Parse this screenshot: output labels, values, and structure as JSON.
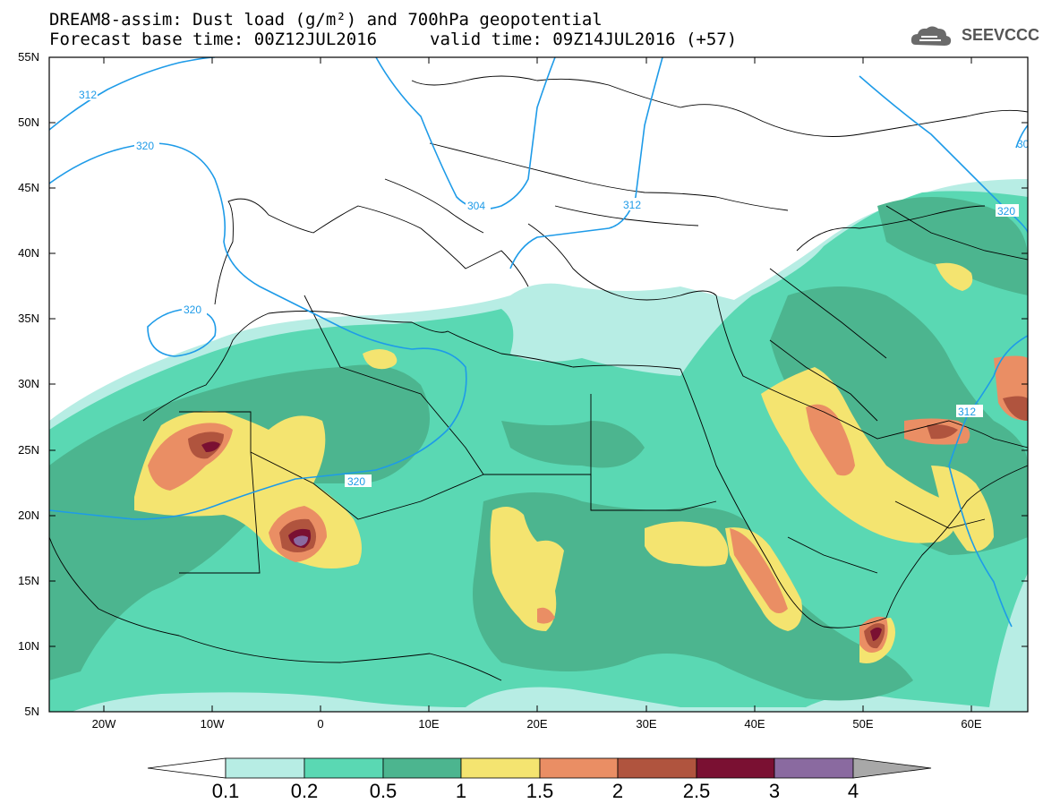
{
  "header": {
    "title_line1": "DREAM8-assim: Dust load (g/m²) and 700hPa geopotential",
    "title_line2": "Forecast base time: 00Z12JUL2016",
    "valid_time": "valid time: 09Z14JUL2016 (+57)",
    "logo_text": "SEEVCCC",
    "logo_icon": "cloud-icon"
  },
  "axes": {
    "lat_labels": [
      "55N",
      "50N",
      "45N",
      "40N",
      "35N",
      "30N",
      "25N",
      "20N",
      "15N",
      "10N",
      "5N"
    ],
    "lon_labels": [
      "20W",
      "10W",
      "0",
      "10E",
      "20E",
      "30E",
      "40E",
      "50E",
      "60E"
    ]
  },
  "contour_labels": [
    "312",
    "320",
    "320",
    "304",
    "312",
    "320",
    "312",
    "320",
    "30"
  ],
  "colorbar": {
    "labels": [
      "0.1",
      "0.2",
      "0.5",
      "1",
      "1.5",
      "2",
      "2.5",
      "3",
      "4"
    ],
    "colors": [
      "#b7ede4",
      "#5ad8b3",
      "#4cb58f",
      "#f4e470",
      "#ea8e64",
      "#b0543e",
      "#7a1032",
      "#8a6aa0",
      "#a8a8a8"
    ]
  },
  "colors": {
    "contour_line": "#1e9be8",
    "land_border": "#000000"
  }
}
